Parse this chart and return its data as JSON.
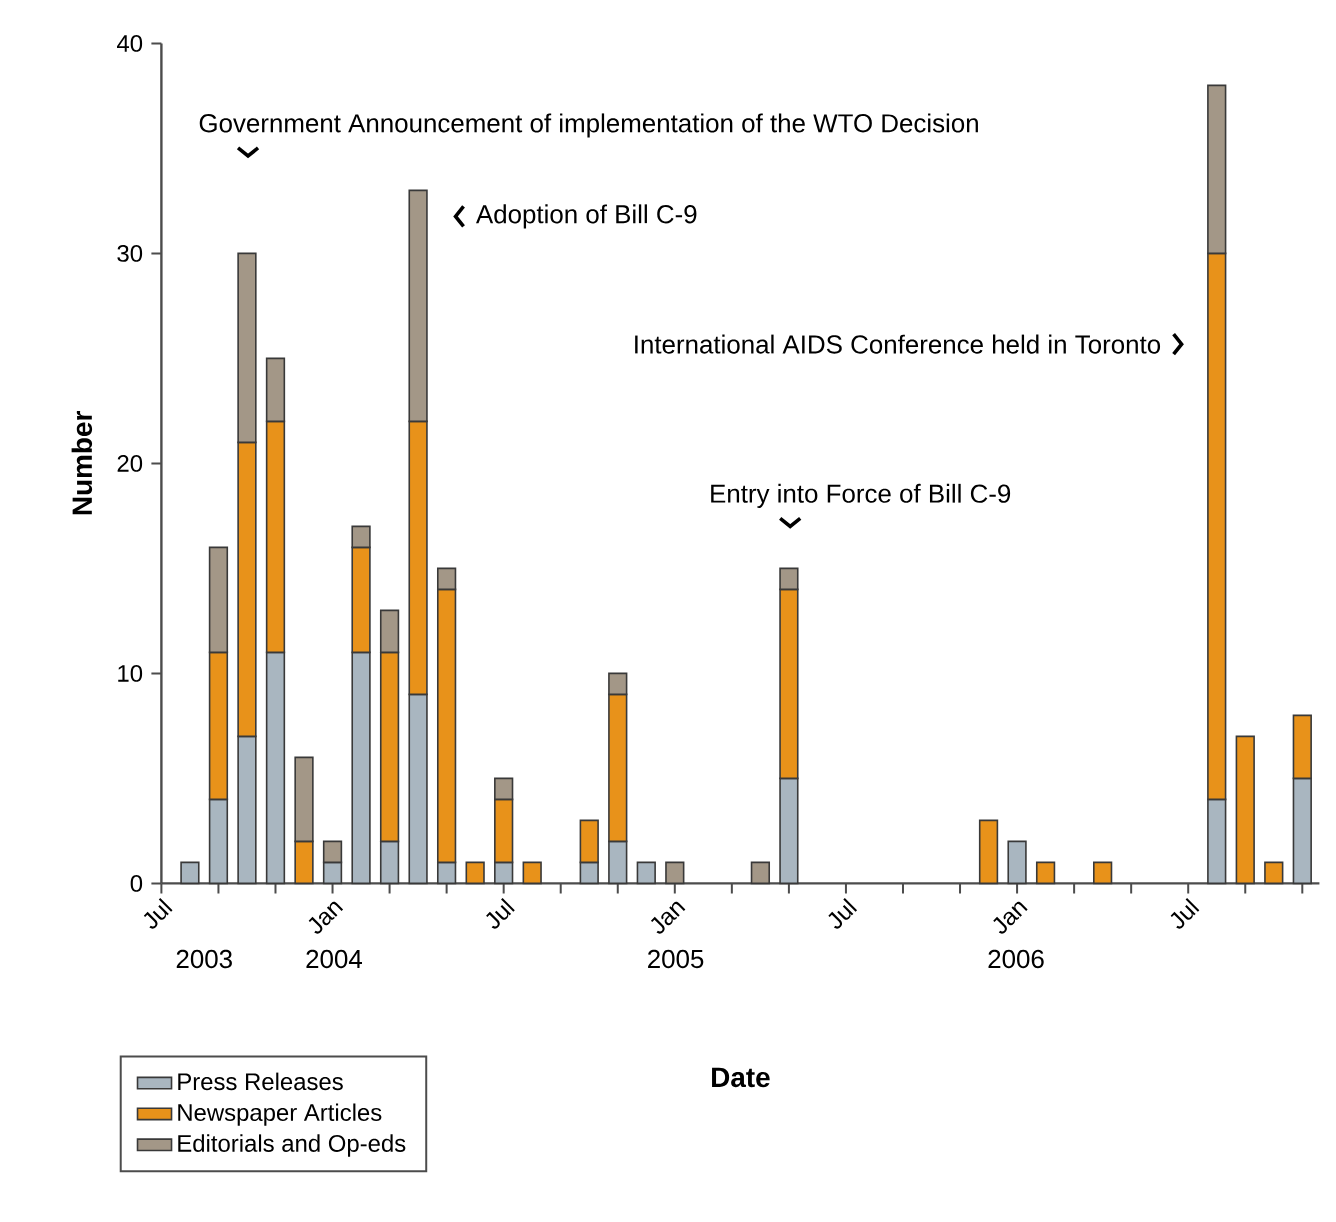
{
  "chart_data": {
    "type": "bar",
    "stacked": true,
    "xlabel": "Date",
    "ylabel": "Number",
    "categories": [
      "Jul",
      null,
      null,
      null,
      null,
      null,
      "Jan",
      null,
      null,
      null,
      null,
      null,
      "Jul",
      null,
      null,
      null,
      null,
      null,
      "Jan",
      null,
      null,
      null,
      null,
      null,
      "Jul",
      null,
      null,
      null,
      null,
      null,
      "Jan",
      null,
      null,
      null,
      null,
      null,
      "Jul",
      null,
      null,
      null,
      null
    ],
    "series": [
      {
        "name": "Press Releases",
        "color": "#a9b6c0",
        "values": [
          null,
          1,
          4,
          7,
          11,
          null,
          1,
          11,
          2,
          9,
          1,
          null,
          1,
          null,
          null,
          1,
          2,
          1,
          null,
          null,
          null,
          null,
          5,
          null,
          null,
          null,
          null,
          null,
          null,
          null,
          2,
          null,
          null,
          null,
          null,
          null,
          null,
          4,
          null,
          null,
          5
        ]
      },
      {
        "name": "Newspaper Articles",
        "color": "#e8921a",
        "values": [
          null,
          null,
          7,
          14,
          11,
          2,
          null,
          5,
          9,
          13,
          13,
          1,
          3,
          1,
          null,
          2,
          7,
          null,
          null,
          null,
          null,
          null,
          9,
          null,
          null,
          null,
          null,
          null,
          null,
          3,
          null,
          1,
          null,
          1,
          null,
          null,
          null,
          26,
          7,
          1,
          3
        ]
      },
      {
        "name": "Editorials and Op-eds",
        "color": "#a39787",
        "values": [
          null,
          null,
          5,
          9,
          3,
          4,
          1,
          1,
          2,
          11,
          1,
          null,
          1,
          null,
          null,
          null,
          1,
          null,
          1,
          null,
          null,
          1,
          1,
          null,
          null,
          null,
          null,
          null,
          null,
          null,
          null,
          null,
          null,
          null,
          null,
          null,
          null,
          8,
          null,
          null,
          null
        ]
      }
    ],
    "ylim": [
      0,
      40
    ],
    "yticks": [
      0,
      10,
      20,
      30,
      40
    ],
    "grid": false,
    "legend": "bottom left",
    "annotations": [
      "Government Announcement of implementation of the WTO Decision",
      "Adoption of Bill C-9",
      "International AIDS Conference held in Toronto",
      "Entry into Force of Bill C-9",
      "2003",
      "2004",
      "2005",
      "2006"
    ]
  }
}
